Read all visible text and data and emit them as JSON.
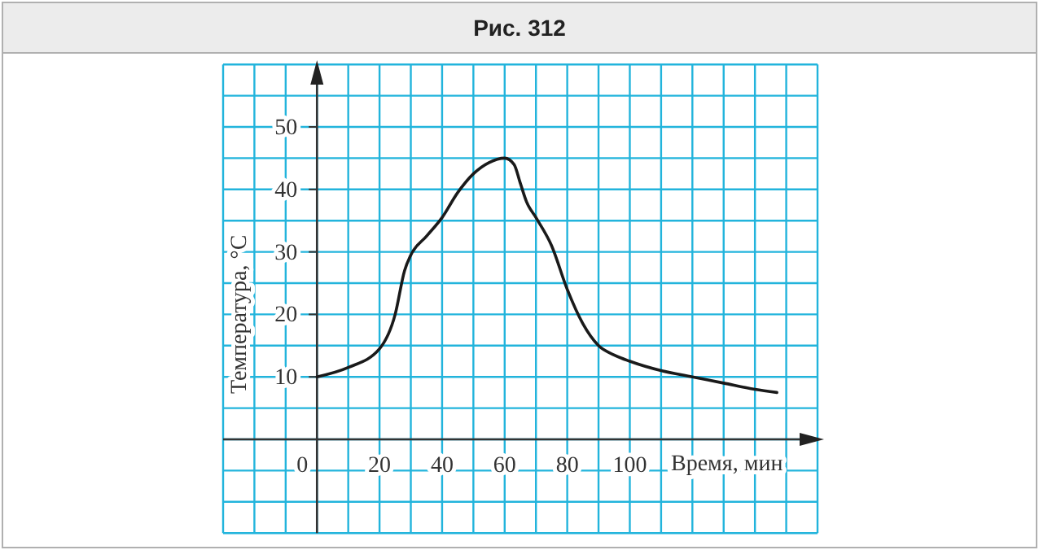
{
  "chart_data": {
    "type": "line",
    "title": "Рис. 312",
    "xlabel": "Время, мин",
    "ylabel": "Температура, °C",
    "x": [
      0,
      10,
      20,
      25,
      28,
      30,
      35,
      40,
      45,
      50,
      55,
      60,
      63,
      65,
      67,
      70,
      75,
      80,
      85,
      90,
      95,
      100,
      110,
      120,
      130,
      140,
      147
    ],
    "series": [
      {
        "color": "#1a1a1a",
        "values": [
          10,
          11.5,
          14.5,
          20,
          27,
          29.5,
          32.5,
          35.5,
          39.5,
          42.5,
          44.3,
          45,
          44,
          41,
          38,
          35.5,
          31,
          24,
          18.5,
          15,
          13.5,
          12.5,
          11,
          10,
          9,
          8,
          7.5
        ]
      }
    ],
    "xlim": [
      -30,
      160
    ],
    "ylim": [
      -15,
      60
    ],
    "xticks": [
      {
        "value": -30,
        "label": null
      },
      {
        "value": -20,
        "label": null
      },
      {
        "value": -10,
        "label": null
      },
      0,
      {
        "value": 10,
        "label": null
      },
      20,
      {
        "value": 30,
        "label": null
      },
      40,
      {
        "value": 50,
        "label": null
      },
      60,
      {
        "value": 70,
        "label": null
      },
      80,
      {
        "value": 90,
        "label": null
      },
      100,
      {
        "value": 110,
        "label": null
      },
      {
        "value": 120,
        "label": null
      },
      {
        "value": 130,
        "label": null
      },
      {
        "value": 140,
        "label": null
      },
      {
        "value": 150,
        "label": null
      },
      {
        "value": 160,
        "label": null
      }
    ],
    "yticks": [
      {
        "value": -15,
        "label": null
      },
      {
        "value": -10,
        "label": null
      },
      {
        "value": -5,
        "label": null
      },
      {
        "value": 0,
        "label": null
      },
      {
        "value": 5,
        "label": null
      },
      10,
      {
        "value": 15,
        "label": null
      },
      20,
      {
        "value": 25,
        "label": null
      },
      30,
      {
        "value": 35,
        "label": null
      },
      40,
      {
        "value": 45,
        "label": null
      },
      50,
      {
        "value": 55,
        "label": null
      },
      {
        "value": 60,
        "label": null
      }
    ],
    "grid": true,
    "line_style": "solid",
    "marker": "none"
  }
}
